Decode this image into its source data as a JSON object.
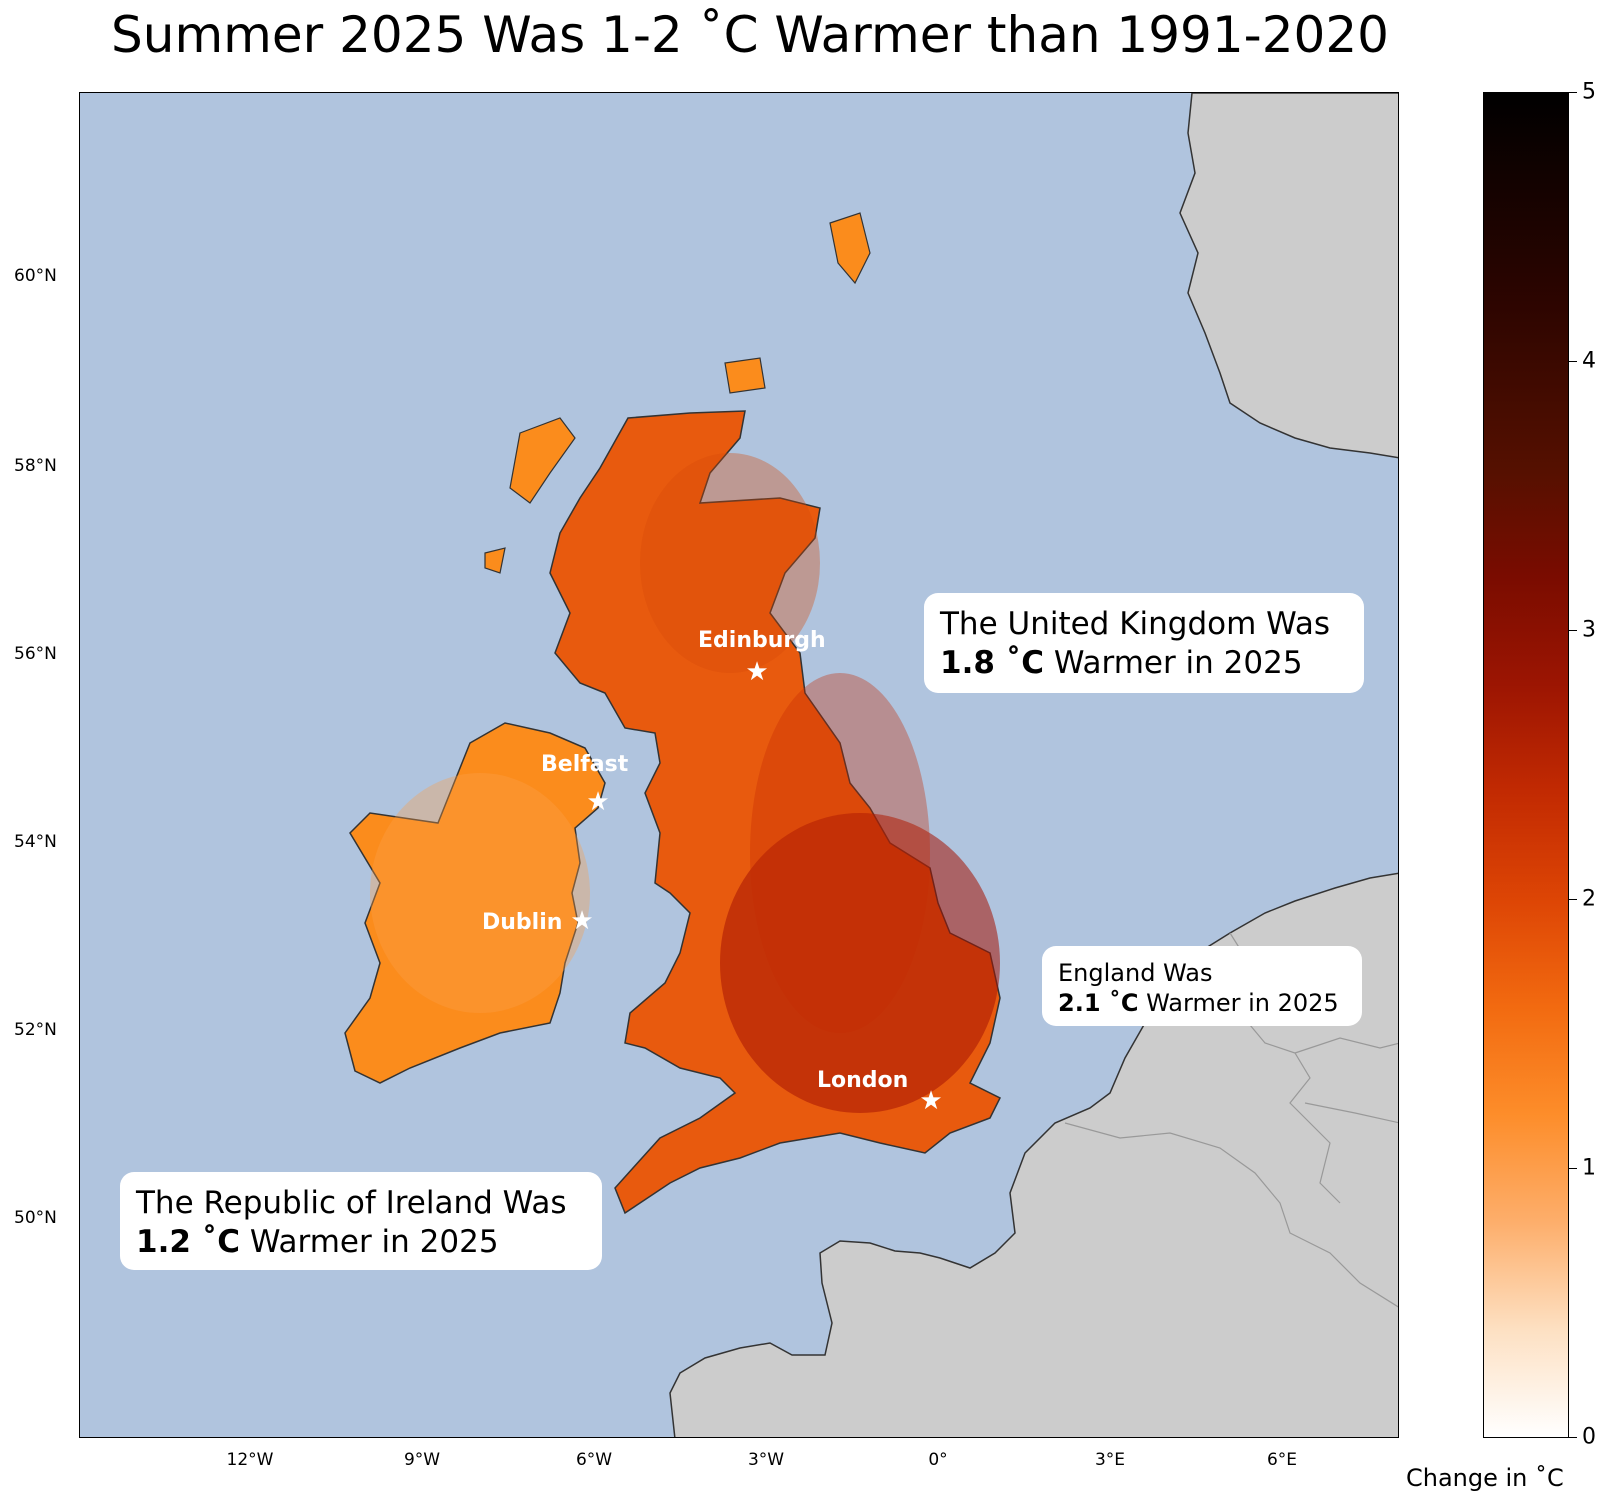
{
  "title": "Summer 2025 Was 1-2$^\\circ$C Warmer than 1991-2020",
  "title_display": "Summer 2025 Was 1-2 ˚C Warmer than 1991-2020",
  "map": {
    "lat_ticks": [
      "60°N",
      "58°N",
      "56°N",
      "54°N",
      "52°N",
      "50°N"
    ],
    "lon_ticks": [
      "12°W",
      "9°W",
      "6°W",
      "3°W",
      "0°",
      "3°E",
      "6°E"
    ],
    "colors": {
      "sea": "#b0c4de",
      "land": "#cccccc",
      "coast": "#333333",
      "border": "#999999"
    }
  },
  "cities": [
    {
      "name": "Edinburgh"
    },
    {
      "name": "Belfast"
    },
    {
      "name": "Dublin"
    },
    {
      "name": "London"
    }
  ],
  "callouts": {
    "uk": {
      "line1": "The United Kingdom Was",
      "value": "1.8 ˚C",
      "rest": " Warmer in 2025"
    },
    "england": {
      "line1": "England Was",
      "value": "2.1 ˚C",
      "rest": " Warmer in 2025"
    },
    "ireland": {
      "line1": "The Republic of Ireland Was",
      "value": "1.2 ˚C",
      "rest": " Warmer in 2025"
    }
  },
  "colorbar": {
    "ticks": [
      "0",
      "1",
      "2",
      "3",
      "4",
      "5"
    ],
    "title": "Change in ˚C",
    "range": [
      0,
      5
    ]
  }
}
